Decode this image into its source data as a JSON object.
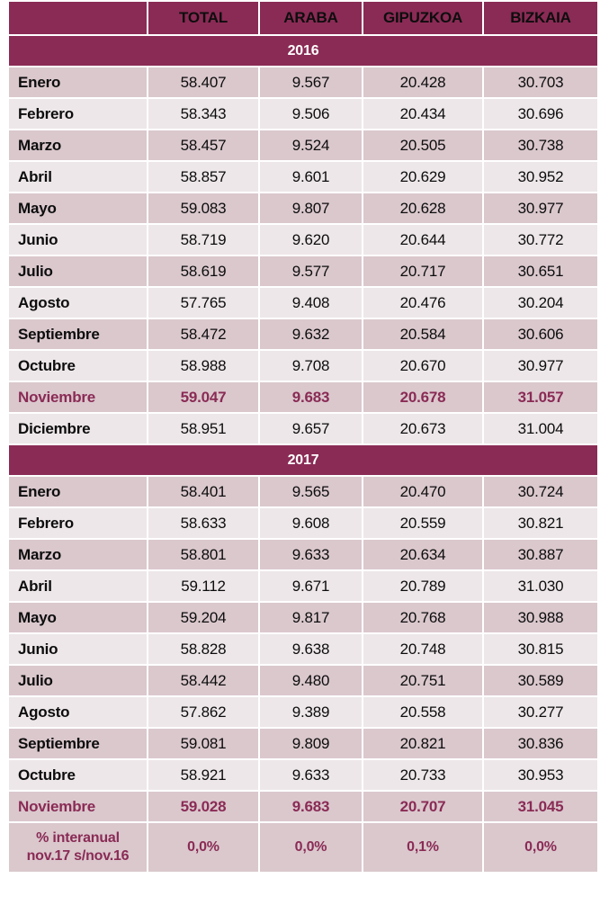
{
  "headers": [
    "",
    "TOTAL",
    "ARABA",
    "GIPUZKOA",
    "BIZKAIA"
  ],
  "sections": [
    {
      "year": "2016",
      "rows": [
        {
          "month": "Enero",
          "values": [
            "58.407",
            "9.567",
            "20.428",
            "30.703"
          ],
          "highlight": false
        },
        {
          "month": "Febrero",
          "values": [
            "58.343",
            "9.506",
            "20.434",
            "30.696"
          ],
          "highlight": false
        },
        {
          "month": "Marzo",
          "values": [
            "58.457",
            "9.524",
            "20.505",
            "30.738"
          ],
          "highlight": false
        },
        {
          "month": "Abril",
          "values": [
            "58.857",
            "9.601",
            "20.629",
            "30.952"
          ],
          "highlight": false
        },
        {
          "month": "Mayo",
          "values": [
            "59.083",
            "9.807",
            "20.628",
            "30.977"
          ],
          "highlight": false
        },
        {
          "month": "Junio",
          "values": [
            "58.719",
            "9.620",
            "20.644",
            "30.772"
          ],
          "highlight": false
        },
        {
          "month": "Julio",
          "values": [
            "58.619",
            "9.577",
            "20.717",
            "30.651"
          ],
          "highlight": false
        },
        {
          "month": "Agosto",
          "values": [
            "57.765",
            "9.408",
            "20.476",
            "30.204"
          ],
          "highlight": false
        },
        {
          "month": "Septiembre",
          "values": [
            "58.472",
            "9.632",
            "20.584",
            "30.606"
          ],
          "highlight": false
        },
        {
          "month": "Octubre",
          "values": [
            "58.988",
            "9.708",
            "20.670",
            "30.977"
          ],
          "highlight": false
        },
        {
          "month": "Noviembre",
          "values": [
            "59.047",
            "9.683",
            "20.678",
            "31.057"
          ],
          "highlight": true
        },
        {
          "month": "Diciembre",
          "values": [
            "58.951",
            "9.657",
            "20.673",
            "31.004"
          ],
          "highlight": false
        }
      ]
    },
    {
      "year": "2017",
      "rows": [
        {
          "month": "Enero",
          "values": [
            "58.401",
            "9.565",
            "20.470",
            "30.724"
          ],
          "highlight": false
        },
        {
          "month": "Febrero",
          "values": [
            "58.633",
            "9.608",
            "20.559",
            "30.821"
          ],
          "highlight": false
        },
        {
          "month": "Marzo",
          "values": [
            "58.801",
            "9.633",
            "20.634",
            "30.887"
          ],
          "highlight": false
        },
        {
          "month": "Abril",
          "values": [
            "59.112",
            "9.671",
            "20.789",
            "31.030"
          ],
          "highlight": false
        },
        {
          "month": "Mayo",
          "values": [
            "59.204",
            "9.817",
            "20.768",
            "30.988"
          ],
          "highlight": false
        },
        {
          "month": "Junio",
          "values": [
            "58.828",
            "9.638",
            "20.748",
            "30.815"
          ],
          "highlight": false
        },
        {
          "month": "Julio",
          "values": [
            "58.442",
            "9.480",
            "20.751",
            "30.589"
          ],
          "highlight": false
        },
        {
          "month": "Agosto",
          "values": [
            "57.862",
            "9.389",
            "20.558",
            "30.277"
          ],
          "highlight": false
        },
        {
          "month": "Septiembre",
          "values": [
            "59.081",
            "9.809",
            "20.821",
            "30.836"
          ],
          "highlight": false
        },
        {
          "month": "Octubre",
          "values": [
            "58.921",
            "9.633",
            "20.733",
            "30.953"
          ],
          "highlight": false
        },
        {
          "month": "Noviembre",
          "values": [
            "59.028",
            "9.683",
            "20.707",
            "31.045"
          ],
          "highlight": true
        }
      ]
    }
  ],
  "summary": {
    "label_line1": "% interanual",
    "label_line2": "nov.17 s/nov.16",
    "values": [
      "0,0%",
      "0,0%",
      "0,1%",
      "0,0%"
    ]
  },
  "colors": {
    "header": "#8a2b55",
    "row_odd": "#dac8cd",
    "row_even": "#ede7e9",
    "highlight_text": "#8a2b55"
  }
}
